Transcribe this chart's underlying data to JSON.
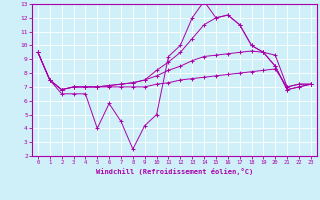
{
  "xlabel": "Windchill (Refroidissement éolien,°C)",
  "xlim": [
    -0.5,
    23.5
  ],
  "ylim": [
    2,
    13
  ],
  "yticks": [
    2,
    3,
    4,
    5,
    6,
    7,
    8,
    9,
    10,
    11,
    12,
    13
  ],
  "xticks": [
    0,
    1,
    2,
    3,
    4,
    5,
    6,
    7,
    8,
    9,
    10,
    11,
    12,
    13,
    14,
    15,
    16,
    17,
    18,
    19,
    20,
    21,
    22,
    23
  ],
  "bg_color": "#cff0f8",
  "line_color": "#aa00aa",
  "grid_color": "#ffffff",
  "series": [
    [
      9.5,
      7.5,
      6.5,
      6.5,
      6.5,
      4.0,
      5.8,
      4.5,
      2.5,
      4.2,
      5.0,
      9.2,
      10.0,
      12.0,
      13.2,
      12.0,
      12.2,
      11.5,
      10.0,
      9.5,
      8.5,
      6.8,
      7.0,
      7.2
    ],
    [
      9.5,
      7.5,
      6.8,
      7.0,
      7.0,
      7.0,
      7.0,
      7.0,
      7.0,
      7.0,
      7.2,
      7.3,
      7.5,
      7.6,
      7.7,
      7.8,
      7.9,
      8.0,
      8.1,
      8.2,
      8.3,
      7.0,
      7.2,
      7.2
    ],
    [
      9.5,
      7.5,
      6.8,
      7.0,
      7.0,
      7.0,
      7.1,
      7.2,
      7.3,
      7.5,
      7.8,
      8.2,
      8.5,
      8.9,
      9.2,
      9.3,
      9.4,
      9.5,
      9.6,
      9.5,
      9.3,
      7.0,
      7.2,
      7.2
    ],
    [
      9.5,
      7.5,
      6.8,
      7.0,
      7.0,
      7.0,
      7.1,
      7.2,
      7.3,
      7.5,
      8.2,
      8.8,
      9.5,
      10.5,
      11.5,
      12.0,
      12.2,
      11.5,
      10.0,
      9.5,
      8.5,
      6.8,
      7.0,
      7.2
    ]
  ]
}
